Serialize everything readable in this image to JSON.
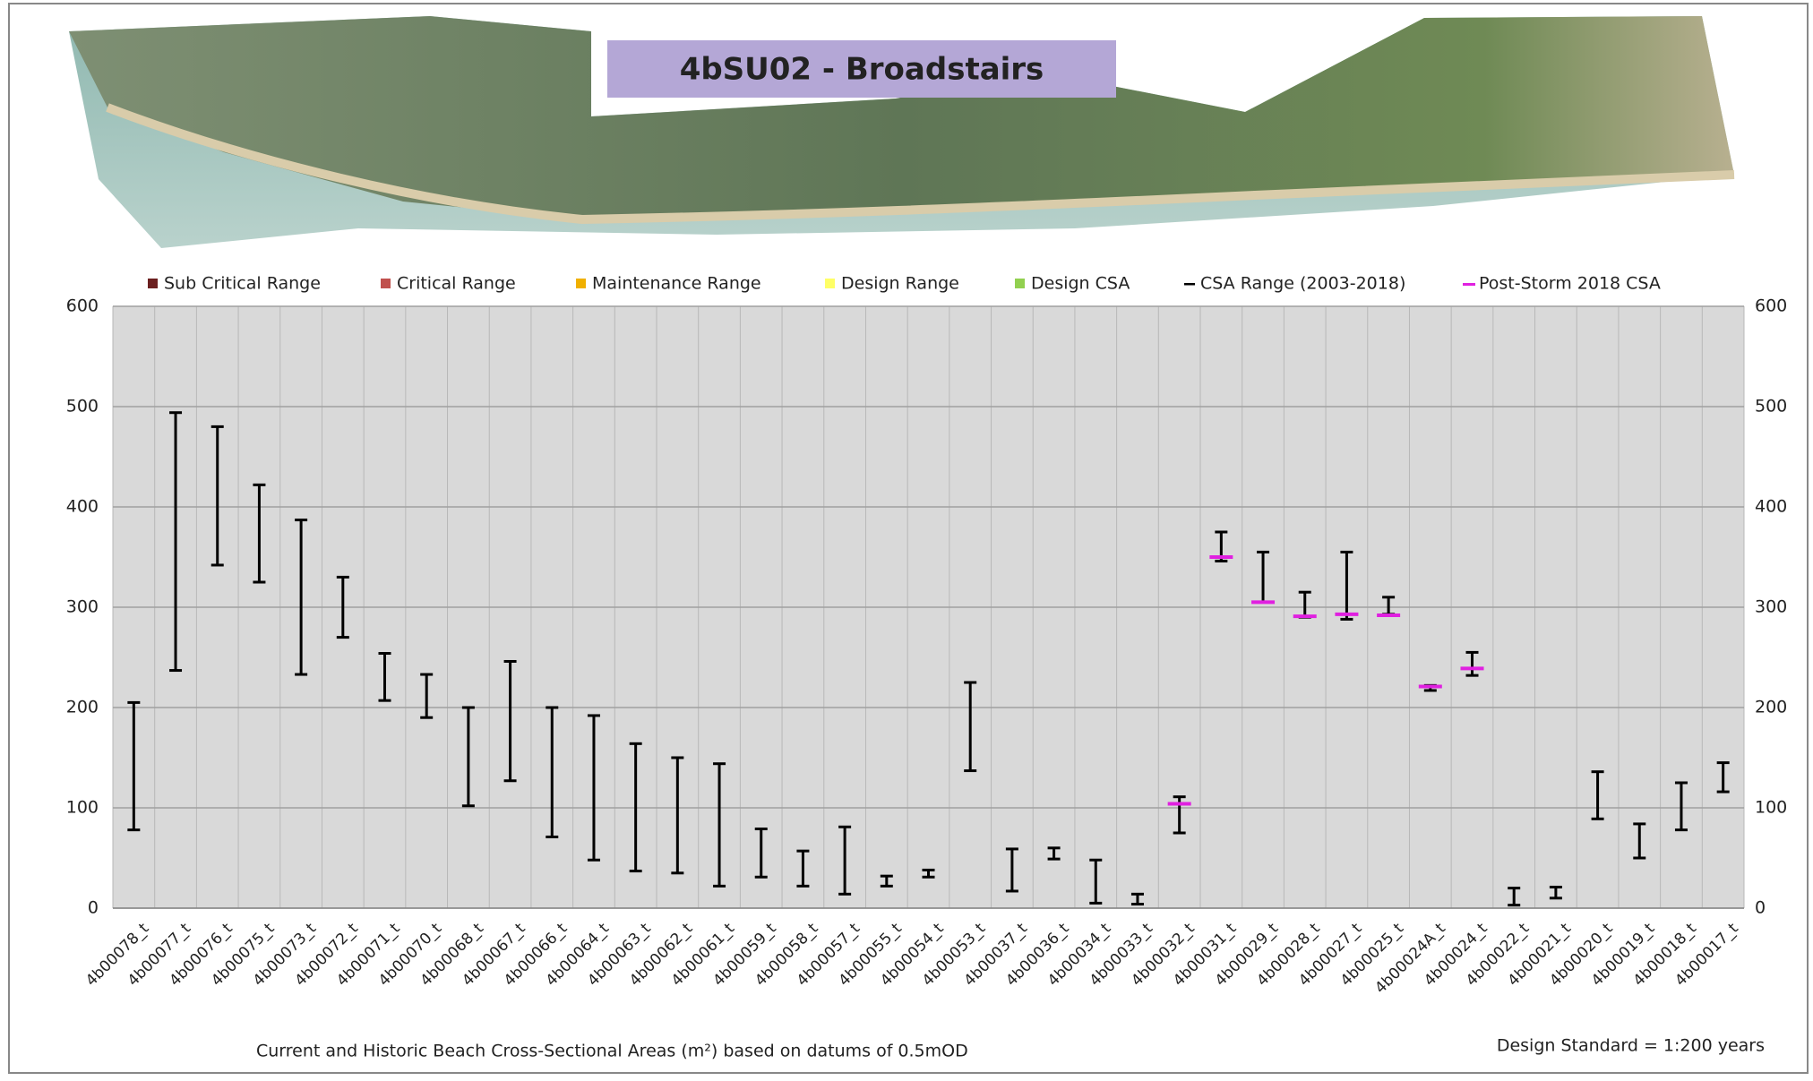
{
  "chart_data": {
    "type": "range",
    "title": "4bSU02 - Broadstairs",
    "xlabel": "Current and Historic Beach Cross-Sectional Areas (m²) based on datums of 0.5mOD",
    "annotation": "Design Standard = 1:200 years",
    "categories": [
      "4b00078_t",
      "4b00077_t",
      "4b00076_t",
      "4b00075_t",
      "4b00073_t",
      "4b00072_t",
      "4b00071_t",
      "4b00070_t",
      "4b00068_t",
      "4b00067_t",
      "4b00066_t",
      "4b00064_t",
      "4b00063_t",
      "4b00062_t",
      "4b00061_t",
      "4b00059_t",
      "4b00058_t",
      "4b00057_t",
      "4b00055_t",
      "4b00054_t",
      "4b00053_t",
      "4b00037_t",
      "4b00036_t",
      "4b00034_t",
      "4b00033_t",
      "4b00032_t",
      "4b00031_t",
      "4b00029_t",
      "4b00028_t",
      "4b00027_t",
      "4b00025_t",
      "4b00024A_t",
      "4b00024_t",
      "4b00022_t",
      "4b00021_t",
      "4b00020_t",
      "4b00019_t",
      "4b00018_t",
      "4b00017_t"
    ],
    "series": [
      {
        "name": "Sub Critical Range",
        "color": "#6b1f1f"
      },
      {
        "name": "Critical Range",
        "color": "#c0504d"
      },
      {
        "name": "Maintenance Range",
        "color": "#f0b000"
      },
      {
        "name": "Design Range",
        "color": "#ffff66"
      },
      {
        "name": "Design CSA",
        "color": "#92d050"
      },
      {
        "name": "CSA Range (2003-2018)",
        "color": "#000000",
        "min": [
          78,
          237,
          342,
          325,
          233,
          270,
          207,
          190,
          102,
          127,
          71,
          48,
          37,
          35,
          22,
          31,
          22,
          14,
          22,
          31,
          137,
          17,
          49,
          5,
          4,
          75,
          346,
          305,
          290,
          288,
          293,
          217,
          232,
          3,
          10,
          89,
          50,
          78,
          116
        ],
        "max": [
          205,
          494,
          480,
          422,
          387,
          330,
          254,
          233,
          200,
          246,
          200,
          192,
          164,
          150,
          144,
          79,
          57,
          81,
          32,
          38,
          225,
          59,
          60,
          48,
          14,
          111,
          375,
          355,
          315,
          355,
          310,
          222,
          255,
          20,
          21,
          136,
          84,
          125,
          145
        ]
      },
      {
        "name": "Post-Storm 2018 CSA",
        "color": "#e020e0",
        "values": [
          null,
          null,
          null,
          null,
          null,
          null,
          null,
          null,
          null,
          null,
          null,
          null,
          null,
          null,
          null,
          null,
          null,
          null,
          null,
          null,
          null,
          null,
          null,
          null,
          null,
          104,
          350,
          305,
          291,
          293,
          292,
          221,
          239,
          null,
          null,
          null,
          null,
          null,
          null
        ]
      }
    ],
    "ylim": [
      0,
      600
    ],
    "yticks": [
      0,
      100,
      200,
      300,
      400,
      500,
      600
    ],
    "grid": true
  }
}
